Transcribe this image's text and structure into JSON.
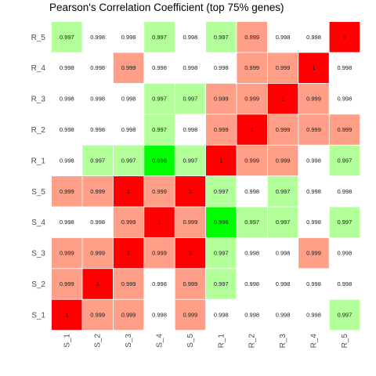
{
  "chart_data": {
    "type": "heatmap",
    "title": "Pearson's Correlation Coefficient (top 75% genes)",
    "x_categories": [
      "S_1",
      "S_2",
      "S_3",
      "S_4",
      "S_5",
      "R_1",
      "R_2",
      "R_3",
      "R_4",
      "R_5"
    ],
    "y_categories": [
      "S_1",
      "S_2",
      "S_3",
      "S_4",
      "S_5",
      "R_1",
      "R_2",
      "R_3",
      "R_4",
      "R_5"
    ],
    "cells": [
      [
        "1",
        "0.999",
        "0.999",
        "0.998",
        "0.999",
        "0.998",
        "0.998",
        "0.998",
        "0.998",
        "0.997"
      ],
      [
        "0.999",
        "1",
        "0.999",
        "0.998",
        "0.999",
        "0.997",
        "0.998",
        "0.998",
        "0.998",
        "0.998"
      ],
      [
        "0.999",
        "0.999",
        "1",
        "0.999",
        "1",
        "0.997",
        "0.998",
        "0.998",
        "0.999",
        "0.998"
      ],
      [
        "0.998",
        "0.998",
        "0.999",
        "1",
        "0.999",
        "0.996",
        "0.997",
        "0.997",
        "0.998",
        "0.997"
      ],
      [
        "0.999",
        "0.999",
        "1",
        "0.999",
        "1",
        "0.997",
        "0.998",
        "0.997",
        "0.998",
        "0.998"
      ],
      [
        "0.998",
        "0.997",
        "0.997",
        "0.996",
        "0.997",
        "1",
        "0.999",
        "0.999",
        "0.998",
        "0.997"
      ],
      [
        "0.998",
        "0.998",
        "0.998",
        "0.997",
        "0.998",
        "0.999",
        "1",
        "0.999",
        "0.999",
        "0.999"
      ],
      [
        "0.998",
        "0.998",
        "0.998",
        "0.997",
        "0.997",
        "0.999",
        "0.999",
        "1",
        "0.999",
        "0.998"
      ],
      [
        "0.998",
        "0.998",
        "0.999",
        "0.998",
        "0.998",
        "0.998",
        "0.999",
        "0.999",
        "1",
        "0.998"
      ],
      [
        "0.997",
        "0.998",
        "0.998",
        "0.997",
        "0.998",
        "0.997",
        "0.999",
        "0.998",
        "0.998",
        "1"
      ]
    ],
    "color_map": {
      "1": "#ff0000",
      "0.999": "#ff9f88",
      "0.998": "#ffffff",
      "0.997": "#b3ff9a",
      "0.996": "#00ff00"
    },
    "grid": false,
    "legend": "none"
  }
}
